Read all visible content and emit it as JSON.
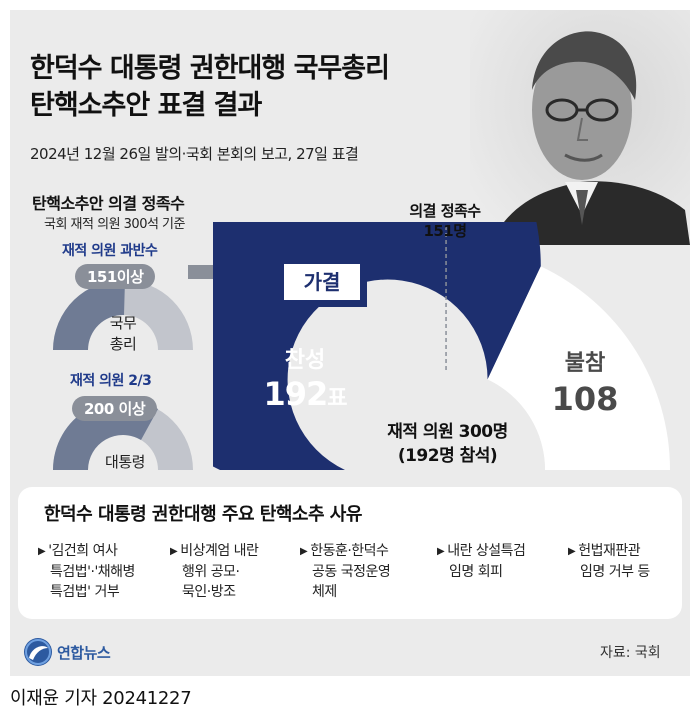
{
  "title": {
    "line1": "한덕수 대통령 권한대행 국무총리",
    "line2": "탄핵소추안 표결 결과"
  },
  "subtitle": "2024년 12월 26일 발의·국회 본회의 보고, 27일 표결",
  "quorum_panel": {
    "title": "탄핵소추안 의결 정족수",
    "note": "국회 재적 의원 300석 기준",
    "pm": {
      "label": "재적 의원 과반수",
      "threshold": "151이상",
      "target": "국무\n총리"
    },
    "president": {
      "label": "재적 의원 2/3",
      "threshold": "200 이상",
      "target": "대통령"
    }
  },
  "result_badge": "가결",
  "quorum_marker": {
    "line1": "의결 정족수",
    "line2": "151명"
  },
  "chart_data": {
    "type": "pie",
    "variant": "semicircle",
    "slices": [
      {
        "label": "찬성",
        "value": 192,
        "value_text": "192",
        "unit": "표",
        "color": "#1d2f6f"
      },
      {
        "label": "불참",
        "value": 108,
        "value_text": "108",
        "color": "#ffffff"
      }
    ],
    "total": 300,
    "quorum": 151,
    "center_text": {
      "line1": "재적 의원 300명",
      "line2": "(192명 참석)"
    }
  },
  "reasons": {
    "title": "한덕수 대통령 권한대행 주요 탄핵소추 사유",
    "items": [
      {
        "lines": [
          "'김건희 여사",
          "특검법'·'채해병",
          "특검법' 거부"
        ]
      },
      {
        "lines": [
          "비상계엄 내란",
          "행위 공모·",
          "묵인·방조"
        ]
      },
      {
        "lines": [
          "한동훈·한덕수",
          "공동 국정운영",
          "체제"
        ]
      },
      {
        "lines": [
          "내란 상설특검",
          "임명 회피"
        ]
      },
      {
        "lines": [
          "헌법재판관",
          "임명 거부 등"
        ]
      }
    ]
  },
  "logo_text": "연합뉴스",
  "source": "자료: 국회",
  "byline": "이재윤 기자  20241227",
  "colors": {
    "navy": "#1d2f6f",
    "gray_arc": "#b9bdc6",
    "gray_arc_dark": "#6f7b94",
    "background": "#ebebeb"
  }
}
